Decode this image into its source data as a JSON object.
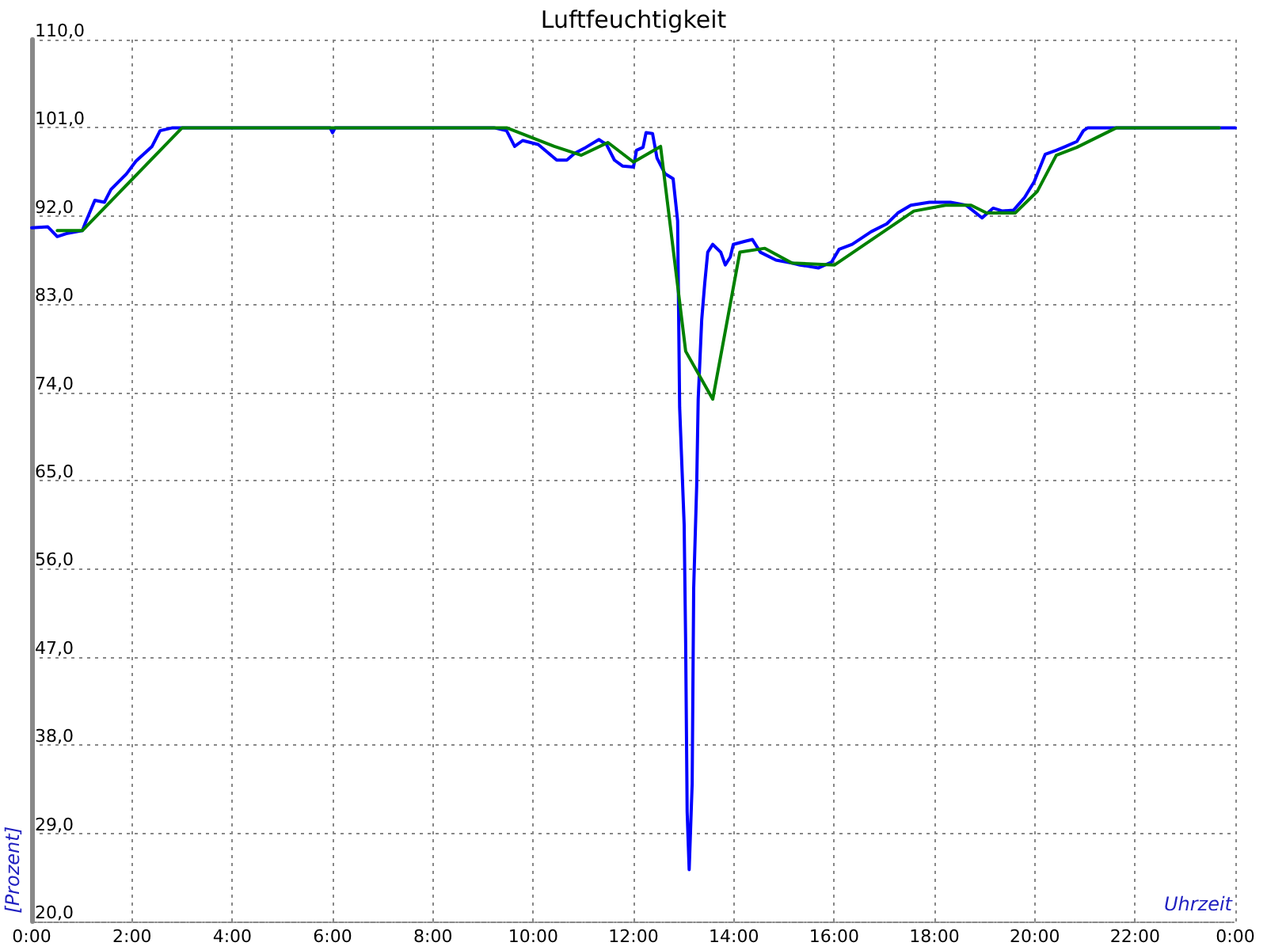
{
  "chart_data": {
    "type": "line",
    "title": "Luftfeuchtigkeit",
    "xlabel": "Uhrzeit",
    "ylabel": "[Prozent]",
    "xlim": [
      0,
      24
    ],
    "xticks": [
      {
        "value": 0,
        "label": "0:00"
      },
      {
        "value": 2,
        "label": "2:00"
      },
      {
        "value": 4,
        "label": "4:00"
      },
      {
        "value": 6,
        "label": "6:00"
      },
      {
        "value": 8,
        "label": "8:00"
      },
      {
        "value": 10,
        "label": "10:00"
      },
      {
        "value": 12,
        "label": "12:00"
      },
      {
        "value": 14,
        "label": "14:00"
      },
      {
        "value": 16,
        "label": "16:00"
      },
      {
        "value": 18,
        "label": "18:00"
      },
      {
        "value": 20,
        "label": "20:00"
      },
      {
        "value": 22,
        "label": "22:00"
      },
      {
        "value": 24,
        "label": "0:00"
      }
    ],
    "ylim": [
      20,
      110
    ],
    "yticks": [
      {
        "value": 20,
        "label": "20,0"
      },
      {
        "value": 29,
        "label": "29,0"
      },
      {
        "value": 38,
        "label": "38,0"
      },
      {
        "value": 47,
        "label": "47,0"
      },
      {
        "value": 56,
        "label": "56,0"
      },
      {
        "value": 65,
        "label": "65,0"
      },
      {
        "value": 74,
        "label": "74,0"
      },
      {
        "value": 83,
        "label": "83,0"
      },
      {
        "value": 92,
        "label": "92,0"
      },
      {
        "value": 101,
        "label": "101,0"
      },
      {
        "value": 110,
        "label": "110,0"
      }
    ],
    "grid": true,
    "marker": "none",
    "line_style": "solid",
    "series": [
      {
        "color": "#0000ff",
        "x": [
          0,
          0.32,
          0.51,
          0.69,
          1.01,
          1.07,
          1.26,
          1.45,
          1.58,
          1.89,
          2.08,
          2.4,
          2.56,
          2.81,
          5.95,
          6.0,
          6.05,
          9.22,
          9.47,
          9.63,
          9.79,
          10.1,
          10.47,
          10.67,
          10.83,
          11.05,
          11.31,
          11.46,
          11.62,
          11.78,
          12.0,
          12.06,
          12.19,
          12.25,
          12.38,
          12.47,
          12.63,
          12.79,
          12.88,
          12.92,
          13.01,
          13.04,
          13.07,
          13.11,
          13.17,
          13.2,
          13.26,
          13.29,
          13.36,
          13.42,
          13.48,
          13.58,
          13.74,
          13.83,
          13.93,
          13.99,
          14.21,
          14.37,
          14.53,
          14.84,
          15.16,
          15.32,
          15.69,
          15.95,
          16.1,
          16.36,
          16.74,
          17.05,
          17.27,
          17.53,
          17.9,
          18.32,
          18.63,
          18.95,
          19.17,
          19.36,
          19.58,
          19.8,
          19.99,
          20.21,
          20.43,
          20.62,
          20.84,
          20.97,
          21.06,
          24
        ],
        "values": [
          90.8,
          90.9,
          89.9,
          90.2,
          90.5,
          91.3,
          93.6,
          93.4,
          94.7,
          96.3,
          97.6,
          99.1,
          100.7,
          101,
          101,
          100.5,
          101,
          101,
          100.7,
          99.1,
          99.7,
          99.3,
          97.7,
          97.7,
          98.4,
          99.0,
          99.8,
          99.3,
          97.7,
          97.1,
          97.0,
          98.7,
          99.0,
          100.5,
          100.4,
          97.9,
          96.3,
          95.8,
          91.5,
          72.5,
          60.5,
          48.4,
          31.2,
          25.3,
          34.1,
          54.0,
          64.5,
          73.3,
          81.4,
          85.1,
          88.3,
          89.1,
          88.3,
          87.0,
          87.8,
          89.1,
          89.4,
          89.6,
          88.3,
          87.5,
          87.2,
          87.0,
          86.7,
          87.3,
          88.6,
          89.1,
          90.4,
          91.2,
          92.3,
          93.1,
          93.4,
          93.4,
          93.1,
          91.8,
          92.8,
          92.5,
          92.6,
          93.9,
          95.5,
          98.3,
          98.7,
          99.1,
          99.6,
          100.7,
          101,
          101
        ]
      },
      {
        "color": "#008000",
        "x": [
          0.51,
          1.01,
          3.0,
          9.47,
          10.42,
          10.96,
          11.49,
          12.0,
          12.54,
          13.04,
          13.58,
          14.12,
          14.62,
          15.16,
          16.01,
          17.59,
          18.22,
          18.73,
          19.04,
          19.61,
          20.05,
          20.43,
          20.84,
          21.63,
          23.68
        ],
        "values": [
          90.5,
          90.5,
          101,
          101,
          99.1,
          98.2,
          99.5,
          97.5,
          99.1,
          78.2,
          73.3,
          88.3,
          88.7,
          87.2,
          87.0,
          92.5,
          93.1,
          93.1,
          92.3,
          92.3,
          94.5,
          98.2,
          99.0,
          101,
          101
        ]
      }
    ]
  }
}
